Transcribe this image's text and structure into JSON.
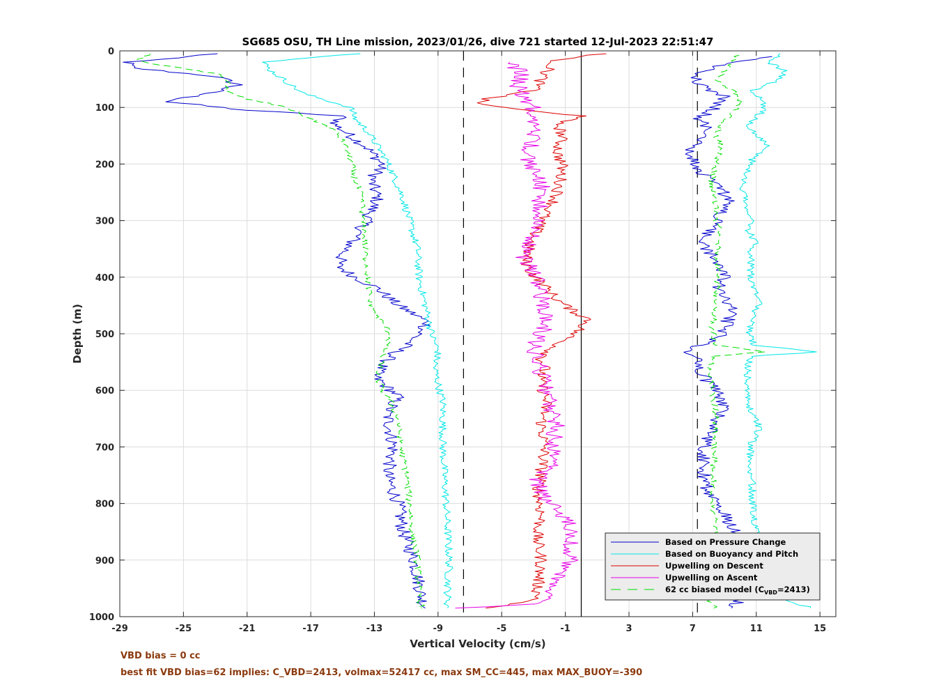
{
  "chart_data": {
    "type": "line",
    "title": "SG685 OSU, TH Line mission, 2023/01/26, dive 721 started 12-Jul-2023 22:51:47",
    "xlabel": "Vertical Velocity (cm/s)",
    "ylabel": "Depth (m)",
    "xlim": [
      -29,
      16
    ],
    "ylim": [
      0,
      1000
    ],
    "y_reversed": true,
    "grid": true,
    "legend_position": "bottom-right",
    "x_ticks": [
      -29,
      -25,
      -21,
      -17,
      -13,
      -9,
      -5,
      -1,
      3,
      7,
      11,
      15
    ],
    "x_tick_labels": [
      "-29",
      "-25",
      "-21",
      "-17",
      "-13",
      "-9",
      "-5",
      "-1",
      "3",
      "7",
      "11",
      "15"
    ],
    "y_ticks": [
      0,
      100,
      200,
      300,
      400,
      500,
      600,
      700,
      800,
      900,
      1000
    ],
    "y_tick_labels": [
      "0",
      "100",
      "200",
      "300",
      "400",
      "500",
      "600",
      "700",
      "800",
      "900",
      "1000"
    ],
    "reference_lines": [
      {
        "x": -7.4,
        "style": "dashed",
        "color": "#000000"
      },
      {
        "x": 7.3,
        "style": "dashed",
        "color": "#000000"
      },
      {
        "x": 0.0,
        "style": "solid",
        "color": "#000000"
      }
    ],
    "series": [
      {
        "name": "Based on Pressure Change",
        "color": "#0000cc",
        "style": "solid",
        "noise": 0.45,
        "profiles": [
          {
            "depth": [
              5,
              20,
              30,
              45,
              60,
              75,
              90,
              105,
              115,
              130,
              150,
              170,
              200,
              230,
              260,
              300,
              330,
              360,
              380,
              400,
              420,
              450,
              480,
              500,
              520,
              540,
              560,
              575,
              590,
              610,
              640,
              700,
              750,
              800,
              850,
              900,
              940,
              970,
              985
            ],
            "v": [
              -23,
              -28.5,
              -28.3,
              -23,
              -21.5,
              -23.5,
              -26,
              -21,
              -15,
              -15.5,
              -14.5,
              -13.5,
              -12.5,
              -13.2,
              -12.8,
              -13.5,
              -14.2,
              -15,
              -15.3,
              -14.2,
              -12.8,
              -11.5,
              -9.6,
              -10.2,
              -11,
              -12,
              -12.6,
              -13,
              -12.4,
              -11.5,
              -12.2,
              -11.8,
              -12.2,
              -11.5,
              -11.2,
              -10.5,
              -10.2,
              -10,
              -9.8
            ]
          },
          {
            "depth": [
              985,
              970,
              940,
              900,
              860,
              820,
              790,
              760,
              730,
              700,
              670,
              630,
              600,
              580,
              560,
              545,
              530,
              510,
              490,
              460,
              440,
              420,
              400,
              380,
              360,
              340,
              320,
              300,
              280,
              260,
              240,
              220,
              200,
              180,
              160,
              140,
              120,
              100,
              80,
              60,
              40,
              25,
              10
            ],
            "v": [
              9.5,
              10,
              10.5,
              11,
              10,
              9,
              8.2,
              7.7,
              7.8,
              7.7,
              8.2,
              9,
              8.5,
              7.8,
              7.3,
              7.5,
              6.5,
              8.5,
              9,
              9.5,
              9,
              8.5,
              9,
              8.8,
              8.2,
              7.5,
              8,
              8.5,
              9,
              9.3,
              8.5,
              7.8,
              7.2,
              6.8,
              7.5,
              8,
              7.4,
              8.5,
              9,
              7.5,
              7,
              9,
              12
            ]
          }
        ]
      },
      {
        "name": "Based on Buoyancy and Pitch",
        "color": "#00e6e6",
        "style": "solid",
        "noise": 0.25,
        "profiles": [
          {
            "depth": [
              5,
              20,
              35,
              55,
              75,
              100,
              120,
              140,
              160,
              190,
              220,
              260,
              300,
              350,
              400,
              450,
              500,
              530,
              560,
              600,
              620,
              700,
              800,
              900,
              960,
              985
            ],
            "v": [
              -14,
              -20,
              -19.5,
              -18.5,
              -17.5,
              -14.5,
              -14.2,
              -13.5,
              -13,
              -12.3,
              -11.8,
              -11.2,
              -10.8,
              -10.3,
              -10.2,
              -9.8,
              -9.4,
              -9,
              -9.2,
              -8.9,
              -8.7,
              -8.7,
              -8.5,
              -8.3,
              -8.4,
              -8.4
            ]
          },
          {
            "depth": [
              985,
              960,
              900,
              850,
              800,
              750,
              700,
              665,
              640,
              600,
              570,
              540,
              532,
              520,
              500,
              460,
              450,
              420,
              400,
              380,
              360,
              340,
              320,
              300,
              280,
              250,
              220,
              190,
              170,
              150,
              130,
              110,
              90,
              70,
              50,
              35,
              20,
              5
            ],
            "v": [
              14.5,
              11.5,
              11,
              11,
              10.8,
              10.7,
              10.6,
              11.2,
              10.6,
              10.5,
              10.4,
              10.6,
              15,
              10.8,
              10.6,
              10.8,
              11.3,
              10.8,
              10.6,
              10.7,
              10.6,
              11,
              10.5,
              10.6,
              10.4,
              10.2,
              10.3,
              10.8,
              11.8,
              11,
              10.5,
              11.3,
              11.5,
              10.8,
              12.5,
              12.8,
              11.8,
              12.5
            ]
          }
        ]
      },
      {
        "name": "Upwelling on Descent",
        "color": "#dd0000",
        "style": "solid",
        "noise": 0.4,
        "profiles": [
          {
            "depth": [
              5,
              15,
              30,
              50,
              70,
              85,
              92,
              100,
              110,
              115,
              125,
              150,
              180,
              200,
              230,
              260,
              300,
              340,
              370,
              390,
              410,
              440,
              460,
              475,
              490,
              510,
              530,
              545,
              560,
              580,
              600,
              620,
              660,
              700,
              740,
              780,
              820,
              860,
              900,
              940,
              970,
              985
            ],
            "v": [
              1.5,
              -1.5,
              -2,
              -2.5,
              -3,
              -6,
              -6.5,
              -5,
              -2,
              0.5,
              -1.5,
              -1.2,
              -1.5,
              -1.2,
              -1.3,
              -1.6,
              -2.5,
              -3.2,
              -3.5,
              -3.2,
              -2.5,
              -1.5,
              -0.5,
              0.5,
              0,
              -1,
              -2,
              -2.5,
              -2.3,
              -2.6,
              -2.4,
              -2.2,
              -2.5,
              -2.3,
              -2.5,
              -2.7,
              -2.5,
              -2.8,
              -2.5,
              -2.7,
              -2.8,
              -6
            ]
          }
        ]
      },
      {
        "name": "Upwelling on Ascent",
        "color": "#e600e6",
        "style": "solid",
        "noise": 0.55,
        "profiles": [
          {
            "depth": [
              985,
              975,
              960,
              930,
              900,
              880,
              860,
              830,
              800,
              780,
              760,
              740,
              720,
              690,
              660,
              630,
              600,
              580,
              560,
              540,
              520,
              500,
              480,
              460,
              440,
              420,
              400,
              380,
              360,
              340,
              320,
              300,
              280,
              260,
              240,
              220,
              200,
              180,
              160,
              140,
              120,
              100,
              80,
              60,
              40,
              20
            ],
            "v": [
              -7.5,
              -2,
              -2.3,
              -1.5,
              -0.5,
              -0.8,
              -0.5,
              -0.8,
              -2,
              -2.5,
              -2.8,
              -2.3,
              -1.5,
              -1.8,
              -1.5,
              -2,
              -2.2,
              -2.4,
              -2.6,
              -2.8,
              -3,
              -2.5,
              -2.2,
              -2.3,
              -2.5,
              -2.7,
              -2.8,
              -3.2,
              -3.7,
              -3.3,
              -3,
              -2.8,
              -2.5,
              -2.7,
              -2.5,
              -2.5,
              -3.3,
              -3.5,
              -3,
              -3,
              -3.3,
              -3,
              -3.7,
              -4,
              -3.7,
              -4.5
            ]
          }
        ]
      },
      {
        "name": "62 cc biased model (C_VBD=2413)",
        "color": "#00dd00",
        "style": "dashed",
        "noise": 0.22,
        "profiles": [
          {
            "depth": [
              5,
              15,
              25,
              40,
              55,
              70,
              85,
              100,
              120,
              140,
              160,
              190,
              220,
              260,
              300,
              350,
              400,
              440,
              470,
              500,
              520,
              540,
              560,
              580,
              600,
              620,
              650,
              700,
              750,
              800,
              850,
              900,
              950,
              975,
              985
            ],
            "v": [
              -27,
              -28,
              -26.5,
              -23,
              -22,
              -22.5,
              -21,
              -18.5,
              -17,
              -15.5,
              -15,
              -14.5,
              -14.3,
              -13.8,
              -13.7,
              -13.6,
              -13.4,
              -13.3,
              -12.8,
              -12,
              -12.2,
              -12.5,
              -12.7,
              -12.8,
              -12.5,
              -12,
              -11.5,
              -11.3,
              -11,
              -10.8,
              -10.6,
              -10.3,
              -10.2,
              -10.1,
              -10
            ]
          },
          {
            "depth": [
              985,
              975,
              950,
              900,
              850,
              800,
              750,
              700,
              650,
              600,
              560,
              540,
              532,
              520,
              490,
              460,
              440,
              400,
              360,
              330,
              300,
              260,
              230,
              200,
              170,
              150,
              130,
              110,
              90,
              70,
              50,
              35,
              20,
              5
            ],
            "v": [
              8.5,
              8,
              8.6,
              8.4,
              8.5,
              8.2,
              8.3,
              8.4,
              8.5,
              8.2,
              8,
              8.3,
              11.5,
              8.5,
              8.2,
              8.4,
              8.5,
              8.6,
              8.4,
              8.8,
              8.5,
              8.4,
              8.2,
              8.5,
              8.8,
              8.5,
              8.8,
              9.5,
              10,
              9.5,
              8.5,
              9,
              9.5,
              9.8
            ]
          }
        ]
      }
    ]
  },
  "legend": {
    "items": [
      {
        "label": "Based on Pressure Change",
        "color": "#0000cc",
        "dash": ""
      },
      {
        "label": "Based on Buoyancy and Pitch",
        "color": "#00e6e6",
        "dash": ""
      },
      {
        "label": "Upwelling on Descent",
        "color": "#dd0000",
        "dash": ""
      },
      {
        "label": "Upwelling on Ascent",
        "color": "#e600e6",
        "dash": ""
      },
      {
        "label": "62 cc biased model (C",
        "sub": "VBD",
        "suffix": "=2413)",
        "color": "#00dd00",
        "dash": "14 10"
      }
    ]
  },
  "notes": {
    "line1": "VBD bias = 0 cc",
    "line2": "best fit VBD bias=62 implies: C_VBD=2413, volmax=52417 cc, max SM_CC=445, max MAX_BUOY=-390"
  }
}
